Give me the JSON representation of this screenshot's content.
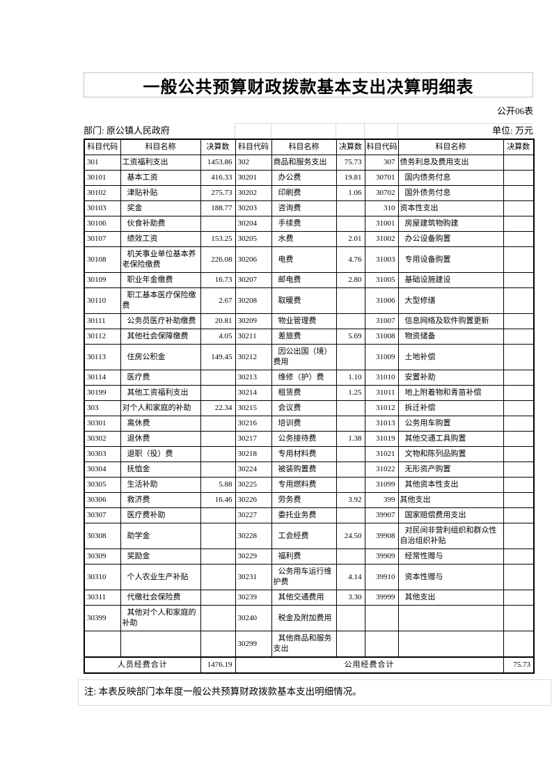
{
  "page": {
    "title": "一般公共预算财政拨款基本支出决算明细表",
    "form_code": "公开06表",
    "department": "部门: 原公镇人民政府",
    "unit": "单位: 万元",
    "note": "注: 本表反映部门本年度一般公共预算财政拨款基本支出明细情况。"
  },
  "colors": {
    "text": "#000000",
    "table_border": "#000000",
    "faint_border": "#d9d9d9",
    "title_box_border": "#bcc6d4"
  },
  "table": {
    "headers": [
      "科目代码",
      "科目名称",
      "决算数",
      "科目代码",
      "科目名称",
      "决算数",
      "科目代码",
      "科目名称",
      "决算数"
    ],
    "rows": [
      [
        "301",
        "工资福利支出",
        "1453.86",
        "302",
        "商品和服务支出",
        "75.73",
        "307",
        "债务利息及费用支出",
        ""
      ],
      [
        "30101",
        "基本工资",
        "416.33",
        "30201",
        "办公费",
        "19.81",
        "30701",
        "国内债务付息",
        ""
      ],
      [
        "30102",
        "津贴补贴",
        "275.73",
        "30202",
        "印刷费",
        "1.06",
        "30702",
        "国外债务付息",
        ""
      ],
      [
        "30103",
        "奖金",
        "188.77",
        "30203",
        "咨询费",
        "",
        "310",
        "资本性支出",
        ""
      ],
      [
        "30106",
        "伙食补助费",
        "",
        "30204",
        "手续费",
        "",
        "31001",
        "房屋建筑物购建",
        ""
      ],
      [
        "30107",
        "绩效工资",
        "153.25",
        "30205",
        "水费",
        "2.01",
        "31002",
        "办公设备购置",
        ""
      ],
      [
        "30108",
        "机关事业单位基本养老保险缴费",
        "226.08",
        "30206",
        "电费",
        "4.76",
        "31003",
        "专用设备购置",
        ""
      ],
      [
        "30109",
        "职业年金缴费",
        "16.73",
        "30207",
        "邮电费",
        "2.80",
        "31005",
        "基础设施建设",
        ""
      ],
      [
        "30110",
        "职工基本医疗保险缴费",
        "2.67",
        "30208",
        "取暖费",
        "",
        "31006",
        "大型修缮",
        ""
      ],
      [
        "30111",
        "公务员医疗补助缴费",
        "20.81",
        "30209",
        "物业管理费",
        "",
        "31007",
        "信息网络及软件购置更新",
        ""
      ],
      [
        "30112",
        "其他社会保障缴费",
        "4.05",
        "30211",
        "差旅费",
        "5.69",
        "31008",
        "物资储备",
        ""
      ],
      [
        "30113",
        "住房公积金",
        "149.45",
        "30212",
        "因公出国（境）费用",
        "",
        "31009",
        "土地补偿",
        ""
      ],
      [
        "30114",
        "医疗费",
        "",
        "30213",
        "维修（护）费",
        "1.10",
        "31010",
        "安置补助",
        ""
      ],
      [
        "30199",
        "其他工资福利支出",
        "",
        "30214",
        "租赁费",
        "1.25",
        "31011",
        "地上附着物和青苗补偿",
        ""
      ],
      [
        "303",
        "对个人和家庭的补助",
        "22.34",
        "30215",
        "会议费",
        "",
        "31012",
        "拆迁补偿",
        ""
      ],
      [
        "30301",
        "离休费",
        "",
        "30216",
        "培训费",
        "",
        "31013",
        "公务用车购置",
        ""
      ],
      [
        "30302",
        "退休费",
        "",
        "30217",
        "公务接待费",
        "1.38",
        "31019",
        "其他交通工具购置",
        ""
      ],
      [
        "30303",
        "退职（役）费",
        "",
        "30218",
        "专用材料费",
        "",
        "31021",
        "文物和陈列品购置",
        ""
      ],
      [
        "30304",
        "抚恤金",
        "",
        "30224",
        "被装购置费",
        "",
        "31022",
        "无形资产购置",
        ""
      ],
      [
        "30305",
        "生活补助",
        "5.88",
        "30225",
        "专用燃料费",
        "",
        "31099",
        "其他资本性支出",
        ""
      ],
      [
        "30306",
        "救济费",
        "16.46",
        "30226",
        "劳务费",
        "3.92",
        "399",
        "其他支出",
        ""
      ],
      [
        "30307",
        "医疗费补助",
        "",
        "30227",
        "委托业务费",
        "",
        "39907",
        "国家赔偿费用支出",
        ""
      ],
      [
        "30308",
        "助学金",
        "",
        "30228",
        "工会经费",
        "24.50",
        "39908",
        "对民间非营利组织和群众性自治组织补贴",
        ""
      ],
      [
        "30309",
        "奖励金",
        "",
        "30229",
        "福利费",
        "",
        "39909",
        "经常性赠与",
        ""
      ],
      [
        "30310",
        "个人农业生产补贴",
        "",
        "30231",
        "公务用车运行维护费",
        "4.14",
        "39910",
        "资本性赠与",
        ""
      ],
      [
        "30311",
        "代缴社会保险费",
        "",
        "30239",
        "其他交通费用",
        "3.30",
        "39999",
        "其他支出",
        ""
      ],
      [
        "30399",
        "其他对个人和家庭的补助",
        "",
        "30240",
        "税金及附加费用",
        "",
        "",
        "",
        ""
      ],
      [
        "",
        "",
        "",
        "30299",
        "其他商品和服务支出",
        "",
        "",
        "",
        ""
      ]
    ],
    "totals": {
      "left_label": "人员经费合计",
      "left_value": "1476.19",
      "right_label": "公用经费合计",
      "right_value": "75.73"
    }
  }
}
